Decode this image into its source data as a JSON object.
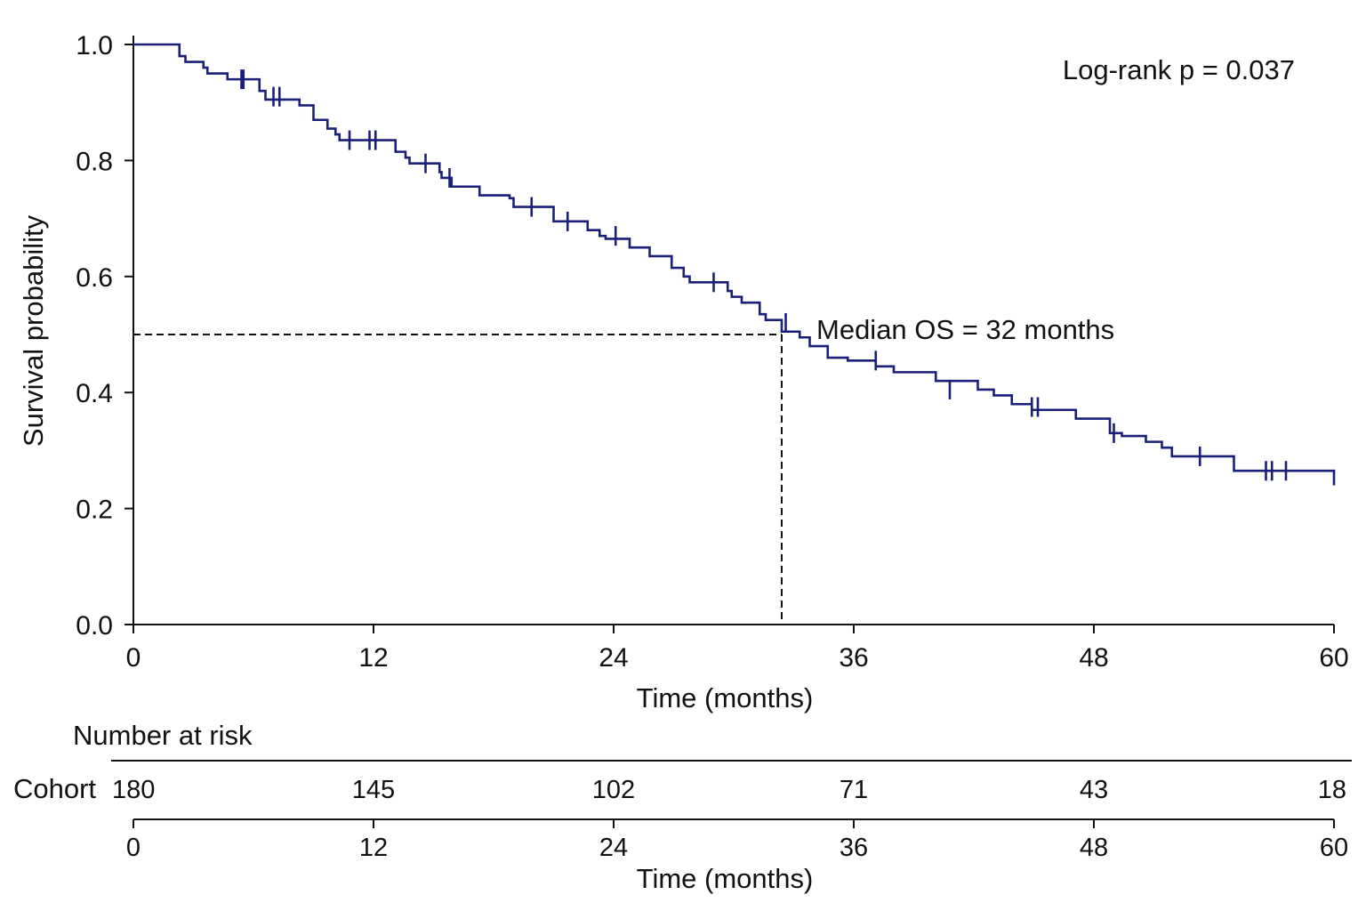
{
  "chart_data": {
    "type": "line",
    "subtype": "kaplan-meier",
    "title": "",
    "xlabel": "Time (months)",
    "ylabel": "Survival probability",
    "xlim": [
      0,
      60
    ],
    "ylim": [
      0,
      1.0
    ],
    "x_ticks": [
      0,
      12,
      24,
      36,
      48,
      60
    ],
    "x_tick_labels": [
      "0",
      "12",
      "24",
      "36",
      "48",
      "60"
    ],
    "y_ticks": [
      0,
      0.2,
      0.4,
      0.6,
      0.8,
      1.0
    ],
    "y_tick_labels": [
      "0.0",
      "0.2",
      "0.4",
      "0.6",
      "0.8",
      "1.0"
    ],
    "grid": false,
    "line_color": "#1a1f7a",
    "series": [
      {
        "steps": [
          [
            0,
            1.0
          ],
          [
            2.3,
            0.98
          ],
          [
            2.6,
            0.97
          ],
          [
            3.5,
            0.96
          ],
          [
            3.7,
            0.95
          ],
          [
            4.7,
            0.94
          ],
          [
            6.3,
            0.92
          ],
          [
            6.6,
            0.905
          ],
          [
            8.3,
            0.895
          ],
          [
            8.9,
            0.895
          ],
          [
            9.0,
            0.87
          ],
          [
            9.7,
            0.855
          ],
          [
            10.1,
            0.845
          ],
          [
            10.3,
            0.835
          ],
          [
            13.1,
            0.815
          ],
          [
            13.6,
            0.805
          ],
          [
            13.8,
            0.795
          ],
          [
            15.3,
            0.78
          ],
          [
            15.4,
            0.77
          ],
          [
            15.9,
            0.755
          ],
          [
            17.3,
            0.74
          ],
          [
            18.8,
            0.735
          ],
          [
            19.0,
            0.72
          ],
          [
            21.0,
            0.695
          ],
          [
            22.7,
            0.68
          ],
          [
            23.3,
            0.67
          ],
          [
            23.6,
            0.665
          ],
          [
            24.8,
            0.65
          ],
          [
            25.8,
            0.635
          ],
          [
            26.9,
            0.615
          ],
          [
            27.5,
            0.6
          ],
          [
            27.8,
            0.59
          ],
          [
            29.7,
            0.575
          ],
          [
            29.9,
            0.565
          ],
          [
            30.4,
            0.555
          ],
          [
            31.3,
            0.535
          ],
          [
            31.6,
            0.525
          ],
          [
            32.4,
            0.505
          ],
          [
            33.3,
            0.495
          ],
          [
            33.8,
            0.48
          ],
          [
            34.7,
            0.46
          ],
          [
            35.7,
            0.455
          ],
          [
            37.1,
            0.445
          ],
          [
            38.0,
            0.435
          ],
          [
            40.1,
            0.42
          ],
          [
            42.2,
            0.405
          ],
          [
            42.5,
            0.405
          ],
          [
            43.0,
            0.395
          ],
          [
            43.9,
            0.38
          ],
          [
            44.9,
            0.37
          ],
          [
            47.1,
            0.355
          ],
          [
            48.8,
            0.33
          ],
          [
            49.4,
            0.325
          ],
          [
            50.6,
            0.315
          ],
          [
            51.4,
            0.305
          ],
          [
            51.9,
            0.29
          ],
          [
            55.0,
            0.265
          ],
          [
            56.7,
            0.265
          ],
          [
            60.0,
            0.24
          ]
        ],
        "censored": [
          [
            5.4,
            0.94
          ],
          [
            5.5,
            0.94
          ],
          [
            7.0,
            0.91
          ],
          [
            7.3,
            0.91
          ],
          [
            10.8,
            0.835
          ],
          [
            11.8,
            0.835
          ],
          [
            12.1,
            0.835
          ],
          [
            14.6,
            0.795
          ],
          [
            15.8,
            0.77
          ],
          [
            19.9,
            0.72
          ],
          [
            21.7,
            0.695
          ],
          [
            24.1,
            0.67
          ],
          [
            29.0,
            0.59
          ],
          [
            32.6,
            0.52
          ],
          [
            37.1,
            0.455
          ],
          [
            40.8,
            0.405
          ],
          [
            44.9,
            0.375
          ],
          [
            45.2,
            0.375
          ],
          [
            49.0,
            0.33
          ],
          [
            53.3,
            0.29
          ],
          [
            56.6,
            0.265
          ],
          [
            56.9,
            0.265
          ],
          [
            57.6,
            0.265
          ]
        ]
      }
    ],
    "median": {
      "x": 32.4,
      "y": 0.5
    },
    "annotations": {
      "logrank": "Log-rank p = 0.037",
      "median_label": "Median OS = 32 months"
    },
    "risk_table": {
      "title": "Number at risk",
      "row_label": "Cohort",
      "times": [
        0,
        12,
        24,
        36,
        48,
        60
      ],
      "counts": [
        "180",
        "145",
        "102",
        "71",
        "43",
        "18"
      ],
      "time_labels": [
        "0",
        "12",
        "24",
        "36",
        "48",
        "60"
      ],
      "xlabel": "Time (months)"
    }
  }
}
